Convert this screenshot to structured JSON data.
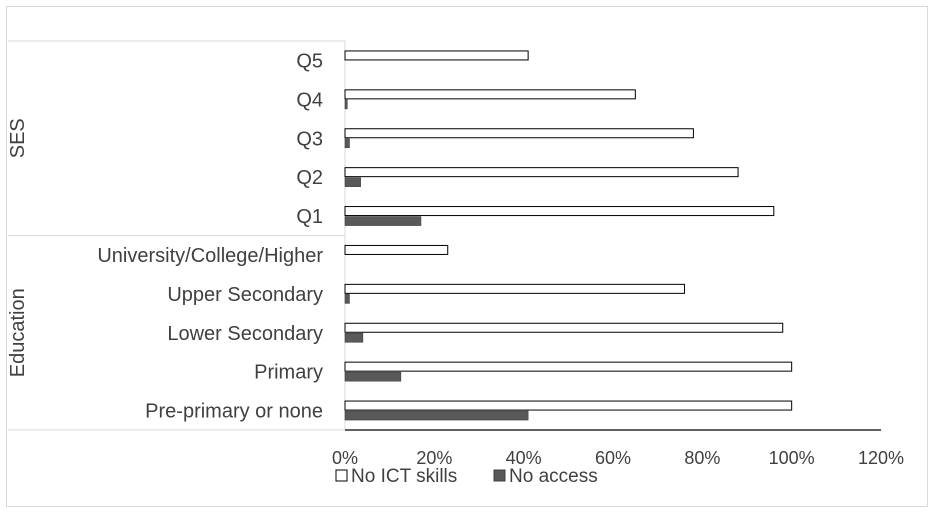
{
  "chart_data": {
    "type": "bar",
    "orientation": "horizontal",
    "groups": [
      {
        "name": "SES",
        "categories": [
          "Q5",
          "Q4",
          "Q3",
          "Q2",
          "Q1"
        ]
      },
      {
        "name": "Education",
        "categories": [
          "University/College/Higher",
          "Upper Secondary",
          "Lower Secondary",
          "Primary",
          "Pre-primary or none"
        ]
      }
    ],
    "categories": [
      "Q5",
      "Q4",
      "Q3",
      "Q2",
      "Q1",
      "University/College/Higher",
      "Upper Secondary",
      "Lower Secondary",
      "Primary",
      "Pre-primary or none"
    ],
    "series": [
      {
        "name": "No ICT skills",
        "color": "#ffffff",
        "stroke": "#000000",
        "values": [
          41,
          65,
          78,
          88,
          96,
          23,
          76,
          98,
          100,
          100
        ]
      },
      {
        "name": "No access",
        "color": "#595959",
        "stroke": "#404040",
        "values": [
          0,
          0.5,
          1,
          3.5,
          17,
          0,
          1,
          4,
          12.5,
          41
        ]
      }
    ],
    "xlim": [
      0,
      120
    ],
    "xticks": [
      0,
      20,
      40,
      60,
      80,
      100,
      120
    ],
    "xtick_labels": [
      "0%",
      "20%",
      "40%",
      "60%",
      "80%",
      "100%",
      "120%"
    ],
    "legend_position": "bottom",
    "grid": false
  }
}
